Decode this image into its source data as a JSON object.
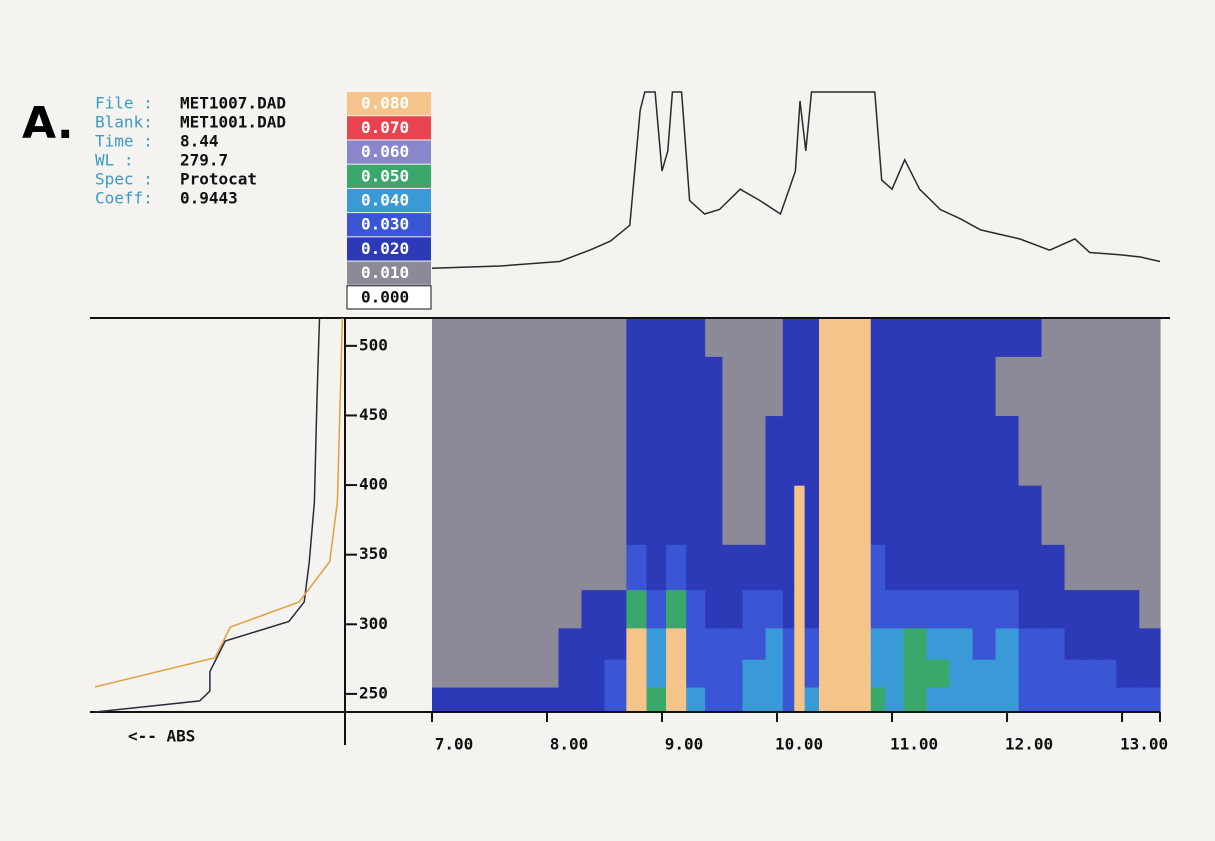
{
  "chart_data": {
    "type": "contour",
    "panel_label": "A.",
    "info": [
      {
        "label": "File :",
        "value": "MET1007.DAD"
      },
      {
        "label": "Blank:",
        "value": "MET1001.DAD"
      },
      {
        "label": "Time :",
        "value": "8.44"
      },
      {
        "label": "WL   :",
        "value": "279.7"
      },
      {
        "label": "Spec :",
        "value": "Protocat"
      },
      {
        "label": "Coeff:",
        "value": "0.9443"
      }
    ],
    "levels": [
      {
        "value": 0.08,
        "label": "0.080",
        "color": "#f5c48a"
      },
      {
        "value": 0.07,
        "label": "0.070",
        "color": "#e8434f"
      },
      {
        "value": 0.06,
        "label": "0.060",
        "color": "#8a86cc"
      },
      {
        "value": 0.05,
        "label": "0.050",
        "color": "#3aa86a"
      },
      {
        "value": 0.04,
        "label": "0.040",
        "color": "#3a9ad8"
      },
      {
        "value": 0.03,
        "label": "0.030",
        "color": "#3a56d4"
      },
      {
        "value": 0.02,
        "label": "0.020",
        "color": "#2c3ab8"
      },
      {
        "value": 0.01,
        "label": "0.010",
        "color": "#8c8a98"
      },
      {
        "value": 0,
        "label": "0.000",
        "color": "#ffffff"
      }
    ],
    "xlim": [
      7,
      13.33
    ],
    "xticks": [
      {
        "value": 7,
        "label": "7.00"
      },
      {
        "value": 8,
        "label": "8.00"
      },
      {
        "value": 9,
        "label": "9.00"
      },
      {
        "value": 10,
        "label": "10.00"
      },
      {
        "value": 11,
        "label": "11.00"
      },
      {
        "value": 12,
        "label": "12.00"
      },
      {
        "value": 13,
        "label": "13.00"
      }
    ],
    "ylim": [
      237,
      520
    ],
    "yticks": [
      250,
      300,
      350,
      400,
      450,
      500
    ],
    "x": [
      7.0,
      7.5,
      8.0,
      8.2,
      8.4,
      8.6,
      8.78,
      8.95,
      9.12,
      9.3,
      9.45,
      9.6,
      9.8,
      10.0,
      10.1,
      10.2,
      10.28,
      10.45,
      10.6,
      10.75,
      10.88,
      11.0,
      11.2,
      11.4,
      11.6,
      11.8,
      12.0,
      12.2,
      12.4,
      12.6,
      12.75,
      12.9,
      13.0,
      13.1,
      13.2,
      13.3
    ],
    "y": [
      245,
      265,
      285,
      310,
      340,
      375,
      425,
      475,
      510
    ],
    "z": [
      [
        0.025,
        0.025,
        0.025,
        0.025,
        0.025,
        0.03,
        0.09,
        0.05,
        0.09,
        0.04,
        0.035,
        0.035,
        0.04,
        0.045,
        0.035,
        0.09,
        0.04,
        0.09,
        0.09,
        0.09,
        0.05,
        0.045,
        0.055,
        0.045,
        0.045,
        0.04,
        0.045,
        0.035,
        0.035,
        0.035,
        0.03,
        0.03,
        0.03,
        0.03,
        0.03,
        0.03
      ],
      [
        0.015,
        0.015,
        0.015,
        0.025,
        0.025,
        0.03,
        0.09,
        0.045,
        0.09,
        0.035,
        0.03,
        0.035,
        0.04,
        0.045,
        0.035,
        0.09,
        0.035,
        0.09,
        0.09,
        0.09,
        0.045,
        0.04,
        0.055,
        0.05,
        0.045,
        0.04,
        0.045,
        0.035,
        0.03,
        0.03,
        0.03,
        0.03,
        0.025,
        0.025,
        0.025,
        0.025
      ],
      [
        0.015,
        0.015,
        0.015,
        0.025,
        0.025,
        0.025,
        0.09,
        0.04,
        0.09,
        0.03,
        0.03,
        0.03,
        0.035,
        0.04,
        0.03,
        0.09,
        0.03,
        0.09,
        0.09,
        0.09,
        0.04,
        0.04,
        0.05,
        0.045,
        0.04,
        0.035,
        0.04,
        0.03,
        0.03,
        0.025,
        0.025,
        0.025,
        0.025,
        0.025,
        0.025,
        0.025
      ],
      [
        0.015,
        0.015,
        0.015,
        0.015,
        0.025,
        0.025,
        0.05,
        0.035,
        0.05,
        0.03,
        0.025,
        0.025,
        0.03,
        0.03,
        0.025,
        0.09,
        0.025,
        0.09,
        0.09,
        0.09,
        0.035,
        0.03,
        0.035,
        0.03,
        0.03,
        0.03,
        0.03,
        0.025,
        0.025,
        0.025,
        0.025,
        0.025,
        0.025,
        0.025,
        0.015,
        0.015
      ],
      [
        0.015,
        0.015,
        0.015,
        0.015,
        0.015,
        0.015,
        0.03,
        0.025,
        0.03,
        0.025,
        0.025,
        0.025,
        0.025,
        0.025,
        0.025,
        0.09,
        0.025,
        0.09,
        0.09,
        0.09,
        0.03,
        0.025,
        0.025,
        0.025,
        0.025,
        0.025,
        0.025,
        0.025,
        0.025,
        0.015,
        0.015,
        0.015,
        0.015,
        0.015,
        0.015,
        0.015
      ],
      [
        0.015,
        0.015,
        0.015,
        0.015,
        0.015,
        0.015,
        0.025,
        0.025,
        0.025,
        0.025,
        0.025,
        0.015,
        0.015,
        0.025,
        0.025,
        0.09,
        0.025,
        0.09,
        0.09,
        0.09,
        0.025,
        0.025,
        0.025,
        0.025,
        0.025,
        0.025,
        0.025,
        0.025,
        0.015,
        0.015,
        0.015,
        0.015,
        0.015,
        0.015,
        0.015,
        0.015
      ],
      [
        0.015,
        0.015,
        0.015,
        0.015,
        0.015,
        0.015,
        0.025,
        0.025,
        0.025,
        0.025,
        0.025,
        0.015,
        0.015,
        0.025,
        0.025,
        0.025,
        0.025,
        0.09,
        0.09,
        0.09,
        0.025,
        0.025,
        0.025,
        0.025,
        0.025,
        0.025,
        0.025,
        0.015,
        0.015,
        0.015,
        0.015,
        0.015,
        0.015,
        0.015,
        0.015,
        0.015
      ],
      [
        0.015,
        0.015,
        0.015,
        0.015,
        0.015,
        0.015,
        0.025,
        0.025,
        0.025,
        0.025,
        0.025,
        0.015,
        0.015,
        0.015,
        0.025,
        0.025,
        0.025,
        0.09,
        0.09,
        0.09,
        0.025,
        0.025,
        0.025,
        0.025,
        0.025,
        0.025,
        0.015,
        0.015,
        0.015,
        0.015,
        0.015,
        0.015,
        0.015,
        0.015,
        0.015,
        0.015
      ],
      [
        0.015,
        0.015,
        0.015,
        0.015,
        0.015,
        0.015,
        0.025,
        0.025,
        0.025,
        0.025,
        0.015,
        0.015,
        0.015,
        0.015,
        0.025,
        0.025,
        0.025,
        0.09,
        0.09,
        0.09,
        0.025,
        0.025,
        0.025,
        0.025,
        0.025,
        0.025,
        0.025,
        0.025,
        0.015,
        0.015,
        0.015,
        0.015,
        0.015,
        0.015,
        0.015,
        0.015
      ]
    ],
    "chromatogram": {
      "color": "#2a2a2a",
      "ylim": [
        0,
        0.1
      ],
      "x": [
        7.0,
        7.59,
        8.11,
        8.37,
        8.55,
        8.72,
        8.81,
        8.85,
        8.94,
        9.0,
        9.05,
        9.09,
        9.17,
        9.24,
        9.37,
        9.5,
        9.68,
        9.85,
        10.03,
        10.16,
        10.2,
        10.25,
        10.3,
        10.85,
        10.91,
        11.0,
        11.11,
        11.24,
        11.42,
        11.59,
        11.77,
        11.94,
        12.11,
        12.37,
        12.59,
        12.72,
        12.98,
        13.16,
        13.33
      ],
      "values": [
        0.022,
        0.023,
        0.025,
        0.03,
        0.034,
        0.041,
        0.092,
        0.1,
        0.1,
        0.065,
        0.074,
        0.1,
        0.1,
        0.052,
        0.046,
        0.048,
        0.057,
        0.052,
        0.046,
        0.065,
        0.096,
        0.074,
        0.1,
        0.1,
        0.061,
        0.057,
        0.07,
        0.057,
        0.048,
        0.044,
        0.039,
        0.037,
        0.035,
        0.03,
        0.035,
        0.029,
        0.028,
        0.027,
        0.025
      ]
    },
    "spectrum": {
      "xlabel": "<-- ABS",
      "xlim": [
        0,
        0.1
      ],
      "series": [
        {
          "color": "#2a2a3a",
          "wavelengths": [
            237,
            245,
            252,
            266,
            288,
            302,
            316,
            345,
            388,
            460,
            520
          ],
          "values": [
            0.098,
            0.057,
            0.053,
            0.053,
            0.047,
            0.022,
            0.016,
            0.014,
            0.012,
            0.011,
            0.01
          ]
        },
        {
          "color": "#e0a040",
          "wavelengths": [
            255,
            276,
            298,
            316,
            345,
            388,
            520
          ],
          "values": [
            0.098,
            0.051,
            0.045,
            0.018,
            0.006,
            0.003,
            0.001
          ]
        }
      ]
    }
  }
}
